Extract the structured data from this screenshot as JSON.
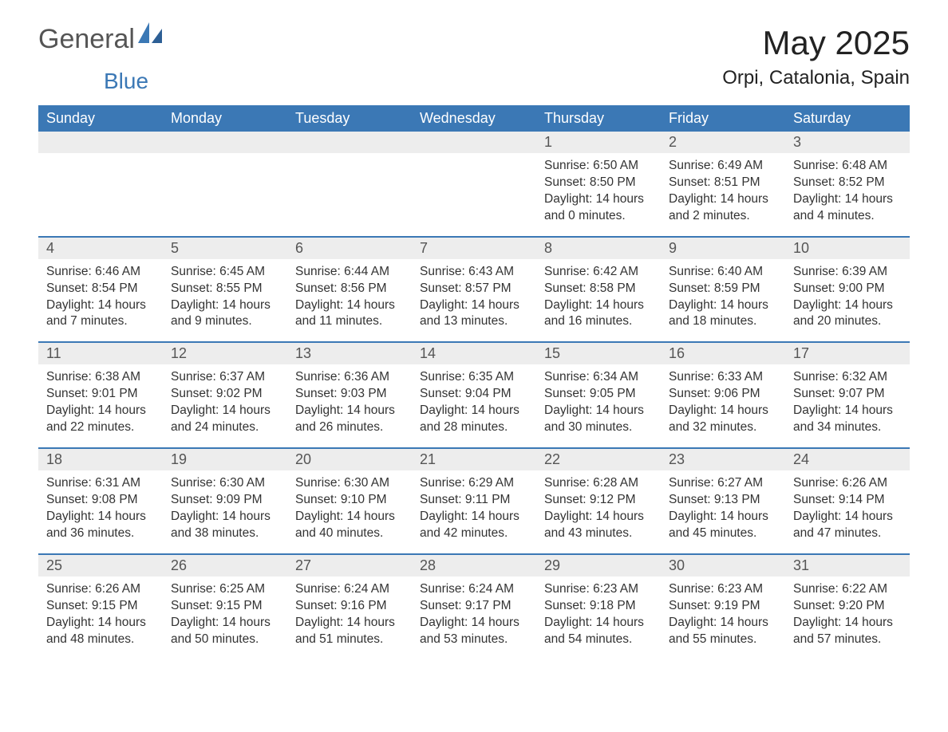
{
  "brand": {
    "name_part1": "General",
    "name_part2": "Blue"
  },
  "title": "May 2025",
  "location": "Orpi, Catalonia, Spain",
  "colors": {
    "header_bg": "#3b78b5",
    "header_text": "#ffffff",
    "daynum_bg": "#ededed",
    "daynum_text": "#555555",
    "body_text": "#333333",
    "page_bg": "#ffffff",
    "rule": "#3b78b5"
  },
  "typography": {
    "title_fontsize": 42,
    "location_fontsize": 24,
    "header_fontsize": 18,
    "daynum_fontsize": 18,
    "body_fontsize": 15.5
  },
  "weekdays": [
    "Sunday",
    "Monday",
    "Tuesday",
    "Wednesday",
    "Thursday",
    "Friday",
    "Saturday"
  ],
  "weeks": [
    [
      null,
      null,
      null,
      null,
      {
        "n": "1",
        "sunrise": "6:50 AM",
        "sunset": "8:50 PM",
        "dl_h": 14,
        "dl_m": 0
      },
      {
        "n": "2",
        "sunrise": "6:49 AM",
        "sunset": "8:51 PM",
        "dl_h": 14,
        "dl_m": 2
      },
      {
        "n": "3",
        "sunrise": "6:48 AM",
        "sunset": "8:52 PM",
        "dl_h": 14,
        "dl_m": 4
      }
    ],
    [
      {
        "n": "4",
        "sunrise": "6:46 AM",
        "sunset": "8:54 PM",
        "dl_h": 14,
        "dl_m": 7
      },
      {
        "n": "5",
        "sunrise": "6:45 AM",
        "sunset": "8:55 PM",
        "dl_h": 14,
        "dl_m": 9
      },
      {
        "n": "6",
        "sunrise": "6:44 AM",
        "sunset": "8:56 PM",
        "dl_h": 14,
        "dl_m": 11
      },
      {
        "n": "7",
        "sunrise": "6:43 AM",
        "sunset": "8:57 PM",
        "dl_h": 14,
        "dl_m": 13
      },
      {
        "n": "8",
        "sunrise": "6:42 AM",
        "sunset": "8:58 PM",
        "dl_h": 14,
        "dl_m": 16
      },
      {
        "n": "9",
        "sunrise": "6:40 AM",
        "sunset": "8:59 PM",
        "dl_h": 14,
        "dl_m": 18
      },
      {
        "n": "10",
        "sunrise": "6:39 AM",
        "sunset": "9:00 PM",
        "dl_h": 14,
        "dl_m": 20
      }
    ],
    [
      {
        "n": "11",
        "sunrise": "6:38 AM",
        "sunset": "9:01 PM",
        "dl_h": 14,
        "dl_m": 22
      },
      {
        "n": "12",
        "sunrise": "6:37 AM",
        "sunset": "9:02 PM",
        "dl_h": 14,
        "dl_m": 24
      },
      {
        "n": "13",
        "sunrise": "6:36 AM",
        "sunset": "9:03 PM",
        "dl_h": 14,
        "dl_m": 26
      },
      {
        "n": "14",
        "sunrise": "6:35 AM",
        "sunset": "9:04 PM",
        "dl_h": 14,
        "dl_m": 28
      },
      {
        "n": "15",
        "sunrise": "6:34 AM",
        "sunset": "9:05 PM",
        "dl_h": 14,
        "dl_m": 30
      },
      {
        "n": "16",
        "sunrise": "6:33 AM",
        "sunset": "9:06 PM",
        "dl_h": 14,
        "dl_m": 32
      },
      {
        "n": "17",
        "sunrise": "6:32 AM",
        "sunset": "9:07 PM",
        "dl_h": 14,
        "dl_m": 34
      }
    ],
    [
      {
        "n": "18",
        "sunrise": "6:31 AM",
        "sunset": "9:08 PM",
        "dl_h": 14,
        "dl_m": 36
      },
      {
        "n": "19",
        "sunrise": "6:30 AM",
        "sunset": "9:09 PM",
        "dl_h": 14,
        "dl_m": 38
      },
      {
        "n": "20",
        "sunrise": "6:30 AM",
        "sunset": "9:10 PM",
        "dl_h": 14,
        "dl_m": 40
      },
      {
        "n": "21",
        "sunrise": "6:29 AM",
        "sunset": "9:11 PM",
        "dl_h": 14,
        "dl_m": 42
      },
      {
        "n": "22",
        "sunrise": "6:28 AM",
        "sunset": "9:12 PM",
        "dl_h": 14,
        "dl_m": 43
      },
      {
        "n": "23",
        "sunrise": "6:27 AM",
        "sunset": "9:13 PM",
        "dl_h": 14,
        "dl_m": 45
      },
      {
        "n": "24",
        "sunrise": "6:26 AM",
        "sunset": "9:14 PM",
        "dl_h": 14,
        "dl_m": 47
      }
    ],
    [
      {
        "n": "25",
        "sunrise": "6:26 AM",
        "sunset": "9:15 PM",
        "dl_h": 14,
        "dl_m": 48
      },
      {
        "n": "26",
        "sunrise": "6:25 AM",
        "sunset": "9:15 PM",
        "dl_h": 14,
        "dl_m": 50
      },
      {
        "n": "27",
        "sunrise": "6:24 AM",
        "sunset": "9:16 PM",
        "dl_h": 14,
        "dl_m": 51
      },
      {
        "n": "28",
        "sunrise": "6:24 AM",
        "sunset": "9:17 PM",
        "dl_h": 14,
        "dl_m": 53
      },
      {
        "n": "29",
        "sunrise": "6:23 AM",
        "sunset": "9:18 PM",
        "dl_h": 14,
        "dl_m": 54
      },
      {
        "n": "30",
        "sunrise": "6:23 AM",
        "sunset": "9:19 PM",
        "dl_h": 14,
        "dl_m": 55
      },
      {
        "n": "31",
        "sunrise": "6:22 AM",
        "sunset": "9:20 PM",
        "dl_h": 14,
        "dl_m": 57
      }
    ]
  ],
  "labels": {
    "sunrise": "Sunrise",
    "sunset": "Sunset",
    "daylight": "Daylight",
    "hours_word": "hours",
    "and_word": "and",
    "minutes_word": "minutes"
  }
}
